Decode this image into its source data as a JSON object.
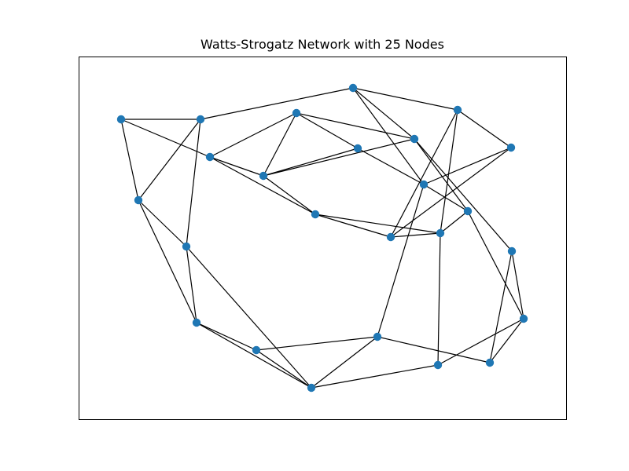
{
  "figure": {
    "title": "Watts-Strogatz Network with 25 Nodes"
  },
  "style": {
    "node_color": "#1f77b4",
    "edge_color": "#000000",
    "frame_color": "#000000",
    "background": "#ffffff"
  },
  "graph": {
    "node_count": 25,
    "edge_count": 50
  }
}
